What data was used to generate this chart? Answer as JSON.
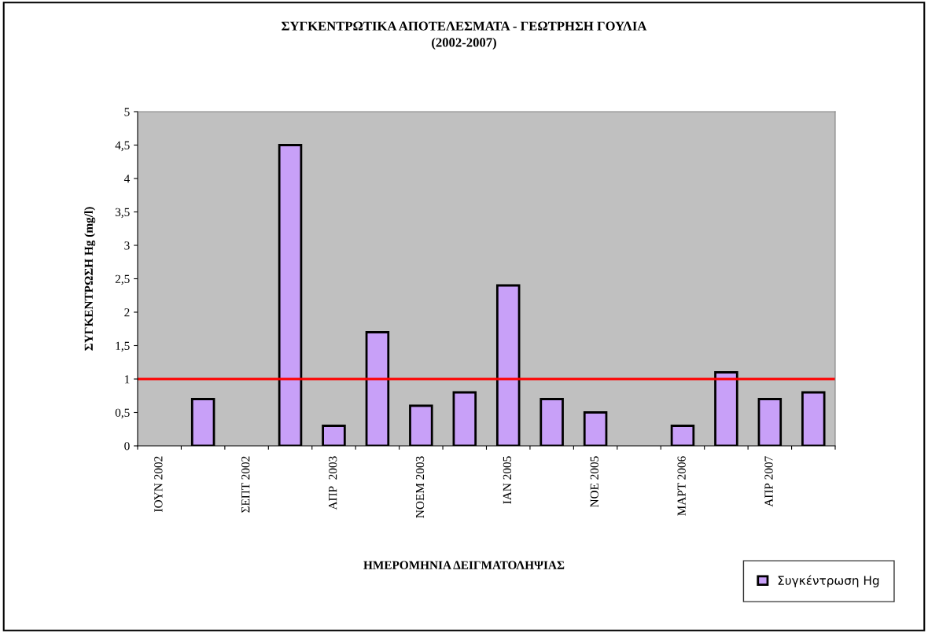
{
  "chart_data": {
    "type": "bar",
    "title": "ΣΥΓΚΕΝΤΡΩΤΙΚΑ ΑΠΟΤΕΛΕΣΜΑΤΑ - ΓΕΩΤΡΗΣΗ ΓΟΥΛΙΑ\n(2002-2007)",
    "xlabel": "ΗΜΕΡΟΜΗΝΙΑ ΔΕΙΓΜΑΤΟΛΗΨΙΑΣ",
    "ylabel": "ΣΥΓΚΕΝΤΡΩΣΗ Hg (mg/l)",
    "categories": [
      "ΙΟΥΝ 2002",
      null,
      "ΣΕΠΤ 2002",
      null,
      "ΑΠΡ  2003",
      null,
      "ΝΟΕΜ 2003",
      null,
      "ΙΑΝ 2005",
      null,
      "ΝΟΕ 2005",
      null,
      "ΜΑΡΤ 2006",
      null,
      "ΑΠΡ 2007",
      null
    ],
    "series": [
      {
        "name": "Συγκέντρωση Hg",
        "color": "#c8a0f8",
        "values": [
          null,
          0.7,
          null,
          4.5,
          0.3,
          1.7,
          0.6,
          0.8,
          2.4,
          0.7,
          0.5,
          null,
          0.3,
          1.1,
          0.7,
          0.8
        ]
      }
    ],
    "ylim": [
      0,
      5
    ],
    "yticks": [
      0,
      {
        "value": 0.5,
        "label": "0,5"
      },
      1,
      {
        "value": 1.5,
        "label": "1,5"
      },
      2,
      {
        "value": 2.5,
        "label": "2,5"
      },
      3,
      {
        "value": 3.5,
        "label": "3,5"
      },
      4,
      {
        "value": 4.5,
        "label": "4,5"
      },
      5
    ],
    "ref_lines": [
      {
        "axis": "y",
        "value": 1,
        "color": "#ff0000"
      }
    ],
    "grid": false,
    "legend": "bottom right"
  }
}
